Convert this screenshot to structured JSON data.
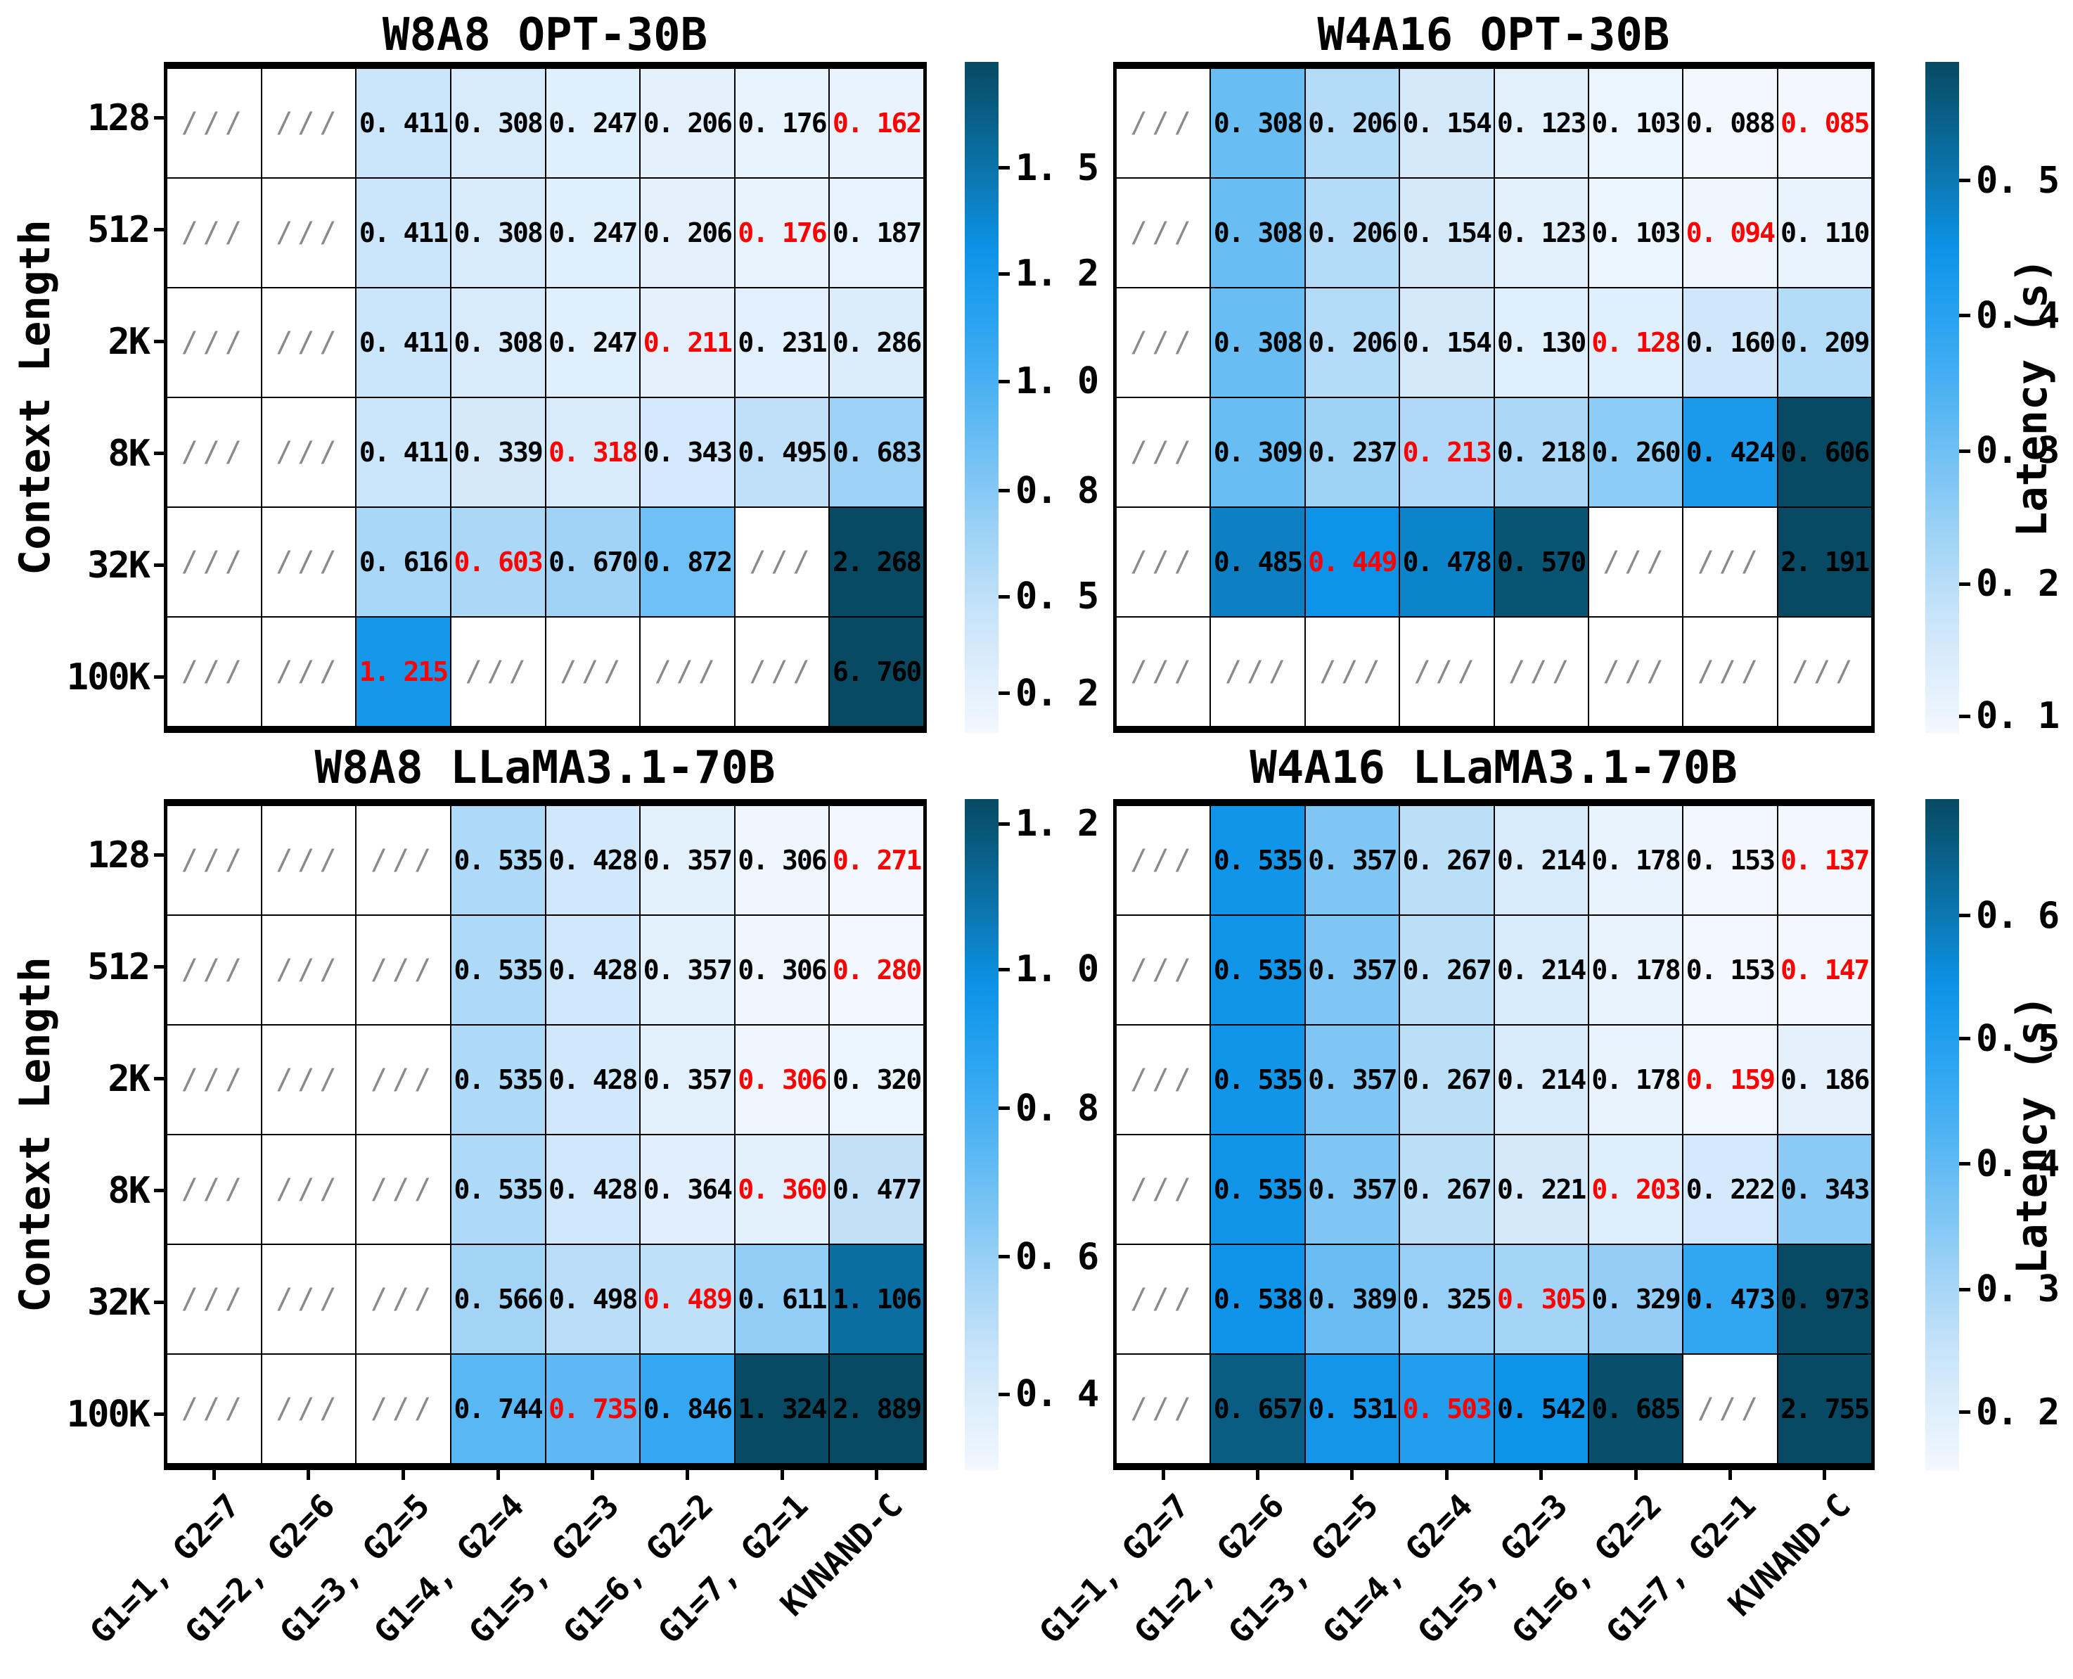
{
  "figure": {
    "y_axis_label": "Context Length",
    "colorbar_label": "Latency (s)",
    "na_marker": "///",
    "value_format": "0. 000 (three decimals, space after decimal point)",
    "row_labels": [
      "128",
      "512",
      "2K",
      "8K",
      "32K",
      "100K"
    ],
    "col_labels": [
      "G1=1, G2=7",
      "G1=2, G2=6",
      "G1=3, G2=5",
      "G1=4, G2=4",
      "G1=5, G2=3",
      "G1=6, G2=2",
      "G1=7, G2=1",
      "KVNAND-C"
    ],
    "colors": {
      "highlight_red": "#ff0000",
      "na_hatch_gray": "#8a8a8a",
      "grid_border": "#000000",
      "colormap_stops": [
        [
          0.0,
          "#f2f8fe"
        ],
        [
          0.08,
          "#e0effc"
        ],
        [
          0.18,
          "#c6e3f9"
        ],
        [
          0.3,
          "#9dd2f6"
        ],
        [
          0.45,
          "#63bbf3"
        ],
        [
          0.6,
          "#2ea5f1"
        ],
        [
          0.72,
          "#0d93e8"
        ],
        [
          0.85,
          "#0b71a6"
        ],
        [
          1.0,
          "#084a63"
        ]
      ]
    }
  },
  "chart_data": [
    {
      "type": "heatmap",
      "title": "W8A8 OPT-30B",
      "unit": "s",
      "x_categories": [
        "G1=1, G2=7",
        "G1=2, G2=6",
        "G1=3, G2=5",
        "G1=4, G2=4",
        "G1=5, G2=3",
        "G1=6, G2=2",
        "G1=7, G2=1",
        "KVNAND-C"
      ],
      "y_categories": [
        "128",
        "512",
        "2K",
        "8K",
        "32K",
        "100K"
      ],
      "values": [
        [
          null,
          null,
          0.411,
          0.308,
          0.247,
          0.206,
          0.176,
          0.162
        ],
        [
          null,
          null,
          0.411,
          0.308,
          0.247,
          0.206,
          0.176,
          0.187
        ],
        [
          null,
          null,
          0.411,
          0.308,
          0.247,
          0.211,
          0.231,
          0.286
        ],
        [
          null,
          null,
          0.411,
          0.339,
          0.318,
          0.343,
          0.495,
          0.683
        ],
        [
          null,
          null,
          0.616,
          0.603,
          0.67,
          0.872,
          null,
          2.268
        ],
        [
          null,
          null,
          1.215,
          null,
          null,
          null,
          null,
          6.76
        ]
      ],
      "red_min_cells": [
        [
          0,
          7
        ],
        [
          1,
          6
        ],
        [
          2,
          5
        ],
        [
          3,
          4
        ],
        [
          4,
          3
        ],
        [
          5,
          2
        ]
      ],
      "colorbar": {
        "label": null,
        "ticks": [
          {
            "label": "1. 5",
            "value": 1.5,
            "frac_from_top": 0.158
          },
          {
            "label": "1. 2",
            "value": 1.2,
            "frac_from_top": 0.316
          },
          {
            "label": "1. 0",
            "value": 1.0,
            "frac_from_top": 0.476
          },
          {
            "label": "0. 8",
            "value": 0.8,
            "frac_from_top": 0.639
          },
          {
            "label": "0. 5",
            "value": 0.5,
            "frac_from_top": 0.797
          },
          {
            "label": "0. 2",
            "value": 0.2,
            "frac_from_top": 0.941
          }
        ]
      }
    },
    {
      "type": "heatmap",
      "title": "W4A16 OPT-30B",
      "unit": "s",
      "x_categories": [
        "G1=1, G2=7",
        "G1=2, G2=6",
        "G1=3, G2=5",
        "G1=4, G2=4",
        "G1=5, G2=3",
        "G1=6, G2=2",
        "G1=7, G2=1",
        "KVNAND-C"
      ],
      "y_categories": [
        "128",
        "512",
        "2K",
        "8K",
        "32K",
        "100K"
      ],
      "values": [
        [
          null,
          0.308,
          0.206,
          0.154,
          0.123,
          0.103,
          0.088,
          0.085
        ],
        [
          null,
          0.308,
          0.206,
          0.154,
          0.123,
          0.103,
          0.094,
          0.11
        ],
        [
          null,
          0.308,
          0.206,
          0.154,
          0.13,
          0.128,
          0.16,
          0.209
        ],
        [
          null,
          0.309,
          0.237,
          0.213,
          0.218,
          0.26,
          0.424,
          0.606
        ],
        [
          null,
          0.485,
          0.449,
          0.478,
          0.57,
          null,
          null,
          2.191
        ],
        [
          null,
          null,
          null,
          null,
          null,
          null,
          null,
          null
        ]
      ],
      "red_min_cells": [
        [
          0,
          7
        ],
        [
          1,
          6
        ],
        [
          2,
          5
        ],
        [
          3,
          3
        ],
        [
          4,
          2
        ]
      ],
      "colorbar": {
        "label": "Latency (s)",
        "ticks": [
          {
            "label": "0. 5",
            "value": 0.5,
            "frac_from_top": 0.177
          },
          {
            "label": "0. 4",
            "value": 0.4,
            "frac_from_top": 0.378
          },
          {
            "label": "0. 3",
            "value": 0.3,
            "frac_from_top": 0.58
          },
          {
            "label": "0. 2",
            "value": 0.2,
            "frac_from_top": 0.778
          },
          {
            "label": "0. 1",
            "value": 0.1,
            "frac_from_top": 0.975
          }
        ]
      }
    },
    {
      "type": "heatmap",
      "title": "W8A8 LLaMA3.1-70B",
      "unit": "s",
      "x_categories": [
        "G1=1, G2=7",
        "G1=2, G2=6",
        "G1=3, G2=5",
        "G1=4, G2=4",
        "G1=5, G2=3",
        "G1=6, G2=2",
        "G1=7, G2=1",
        "KVNAND-C"
      ],
      "y_categories": [
        "128",
        "512",
        "2K",
        "8K",
        "32K",
        "100K"
      ],
      "values": [
        [
          null,
          null,
          null,
          0.535,
          0.428,
          0.357,
          0.306,
          0.271
        ],
        [
          null,
          null,
          null,
          0.535,
          0.428,
          0.357,
          0.306,
          0.28
        ],
        [
          null,
          null,
          null,
          0.535,
          0.428,
          0.357,
          0.306,
          0.32
        ],
        [
          null,
          null,
          null,
          0.535,
          0.428,
          0.364,
          0.36,
          0.477
        ],
        [
          null,
          null,
          null,
          0.566,
          0.498,
          0.489,
          0.611,
          1.106
        ],
        [
          null,
          null,
          null,
          0.744,
          0.735,
          0.846,
          1.324,
          2.889
        ]
      ],
      "red_min_cells": [
        [
          0,
          7
        ],
        [
          1,
          7
        ],
        [
          2,
          6
        ],
        [
          3,
          6
        ],
        [
          4,
          5
        ],
        [
          5,
          4
        ]
      ],
      "colorbar": {
        "label": null,
        "ticks": [
          {
            "label": "1. 2",
            "value": 1.2,
            "frac_from_top": 0.037
          },
          {
            "label": "1. 0",
            "value": 1.0,
            "frac_from_top": 0.254
          },
          {
            "label": "0. 8",
            "value": 0.8,
            "frac_from_top": 0.461
          },
          {
            "label": "0. 6",
            "value": 0.6,
            "frac_from_top": 0.682
          },
          {
            "label": "0. 4",
            "value": 0.4,
            "frac_from_top": 0.887
          }
        ]
      }
    },
    {
      "type": "heatmap",
      "title": "W4A16 LLaMA3.1-70B",
      "unit": "s",
      "x_categories": [
        "G1=1, G2=7",
        "G1=2, G2=6",
        "G1=3, G2=5",
        "G1=4, G2=4",
        "G1=5, G2=3",
        "G1=6, G2=2",
        "G1=7, G2=1",
        "KVNAND-C"
      ],
      "y_categories": [
        "128",
        "512",
        "2K",
        "8K",
        "32K",
        "100K"
      ],
      "values": [
        [
          null,
          0.535,
          0.357,
          0.267,
          0.214,
          0.178,
          0.153,
          0.137
        ],
        [
          null,
          0.535,
          0.357,
          0.267,
          0.214,
          0.178,
          0.153,
          0.147
        ],
        [
          null,
          0.535,
          0.357,
          0.267,
          0.214,
          0.178,
          0.159,
          0.186
        ],
        [
          null,
          0.535,
          0.357,
          0.267,
          0.221,
          0.203,
          0.222,
          0.343
        ],
        [
          null,
          0.538,
          0.389,
          0.325,
          0.305,
          0.329,
          0.473,
          0.973
        ],
        [
          null,
          0.657,
          0.531,
          0.503,
          0.542,
          0.685,
          null,
          2.755
        ]
      ],
      "red_min_cells": [
        [
          0,
          7
        ],
        [
          1,
          7
        ],
        [
          2,
          6
        ],
        [
          3,
          5
        ],
        [
          4,
          4
        ],
        [
          5,
          3
        ]
      ],
      "colorbar": {
        "label": "Latency (s)",
        "ticks": [
          {
            "label": "0. 6",
            "value": 0.6,
            "frac_from_top": 0.174
          },
          {
            "label": "0. 5",
            "value": 0.5,
            "frac_from_top": 0.357
          },
          {
            "label": "0. 4",
            "value": 0.4,
            "frac_from_top": 0.544
          },
          {
            "label": "0. 3",
            "value": 0.3,
            "frac_from_top": 0.731
          },
          {
            "label": "0. 2",
            "value": 0.2,
            "frac_from_top": 0.914
          }
        ]
      }
    }
  ]
}
